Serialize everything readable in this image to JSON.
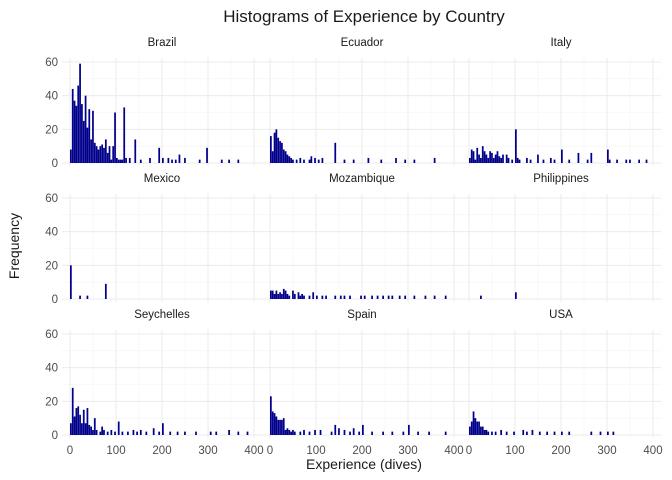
{
  "title": "Histograms of Experience by Country",
  "chart_data": {
    "type": "bar",
    "subtype": "faceted-histogram",
    "title": "Histograms of Experience by Country",
    "xlabel": "Experience (dives)",
    "ylabel": "Frequency",
    "xlim": [
      0,
      400
    ],
    "ylim": [
      0,
      60
    ],
    "x_ticks": [
      0,
      100,
      200,
      300,
      400
    ],
    "y_ticks": [
      0,
      20,
      40,
      60
    ],
    "bin_width": 4,
    "bar_color": "#00008b",
    "grid": true,
    "facet_layout": "3x3",
    "facets": [
      {
        "name": "Brazil",
        "bins": [
          [
            0,
            8
          ],
          [
            4,
            44
          ],
          [
            8,
            37
          ],
          [
            12,
            34
          ],
          [
            16,
            46
          ],
          [
            20,
            59
          ],
          [
            24,
            35
          ],
          [
            28,
            25
          ],
          [
            32,
            40
          ],
          [
            36,
            21
          ],
          [
            40,
            32
          ],
          [
            44,
            14
          ],
          [
            48,
            31
          ],
          [
            52,
            12
          ],
          [
            56,
            10
          ],
          [
            60,
            8
          ],
          [
            64,
            10
          ],
          [
            68,
            11
          ],
          [
            72,
            9
          ],
          [
            76,
            14
          ],
          [
            80,
            6
          ],
          [
            84,
            10
          ],
          [
            88,
            2
          ],
          [
            92,
            10
          ],
          [
            96,
            30
          ],
          [
            100,
            3
          ],
          [
            104,
            2
          ],
          [
            108,
            2
          ],
          [
            112,
            2
          ],
          [
            116,
            33
          ],
          [
            120,
            3
          ],
          [
            128,
            3
          ],
          [
            140,
            14
          ],
          [
            152,
            2
          ],
          [
            172,
            3
          ],
          [
            192,
            9
          ],
          [
            200,
            3
          ],
          [
            212,
            3
          ],
          [
            220,
            2
          ],
          [
            228,
            2
          ],
          [
            236,
            5
          ],
          [
            248,
            3
          ],
          [
            280,
            2
          ],
          [
            296,
            9
          ],
          [
            328,
            2
          ],
          [
            344,
            2
          ],
          [
            364,
            2
          ]
        ]
      },
      {
        "name": "Ecuador",
        "bins": [
          [
            0,
            16
          ],
          [
            4,
            7
          ],
          [
            8,
            18
          ],
          [
            12,
            20
          ],
          [
            16,
            15
          ],
          [
            20,
            13
          ],
          [
            24,
            12
          ],
          [
            28,
            8
          ],
          [
            32,
            7
          ],
          [
            36,
            5
          ],
          [
            40,
            4
          ],
          [
            44,
            3
          ],
          [
            48,
            2
          ],
          [
            56,
            2
          ],
          [
            64,
            3
          ],
          [
            72,
            2
          ],
          [
            84,
            2
          ],
          [
            88,
            4
          ],
          [
            96,
            3
          ],
          [
            104,
            2
          ],
          [
            112,
            3
          ],
          [
            140,
            12
          ],
          [
            160,
            2
          ],
          [
            180,
            2
          ],
          [
            212,
            3
          ],
          [
            240,
            2
          ],
          [
            272,
            3
          ],
          [
            292,
            2
          ],
          [
            312,
            2
          ],
          [
            356,
            3
          ]
        ]
      },
      {
        "name": "Italy",
        "bins": [
          [
            0,
            3
          ],
          [
            4,
            8
          ],
          [
            8,
            7
          ],
          [
            12,
            2
          ],
          [
            16,
            9
          ],
          [
            20,
            5
          ],
          [
            24,
            3
          ],
          [
            28,
            10
          ],
          [
            32,
            7
          ],
          [
            36,
            5
          ],
          [
            40,
            3
          ],
          [
            44,
            7
          ],
          [
            48,
            6
          ],
          [
            52,
            3
          ],
          [
            56,
            5
          ],
          [
            60,
            7
          ],
          [
            64,
            4
          ],
          [
            68,
            3
          ],
          [
            72,
            5
          ],
          [
            80,
            5
          ],
          [
            84,
            3
          ],
          [
            92,
            2
          ],
          [
            100,
            20
          ],
          [
            104,
            3
          ],
          [
            108,
            2
          ],
          [
            124,
            3
          ],
          [
            132,
            2
          ],
          [
            148,
            5
          ],
          [
            160,
            2
          ],
          [
            176,
            3
          ],
          [
            184,
            2
          ],
          [
            200,
            8
          ],
          [
            216,
            2
          ],
          [
            236,
            6
          ],
          [
            256,
            2
          ],
          [
            264,
            6
          ],
          [
            300,
            8
          ],
          [
            304,
            2
          ],
          [
            320,
            2
          ],
          [
            340,
            2
          ],
          [
            348,
            2
          ],
          [
            368,
            2
          ],
          [
            384,
            2
          ]
        ]
      },
      {
        "name": "Mexico",
        "bins": [
          [
            0,
            20
          ],
          [
            20,
            2
          ],
          [
            36,
            2
          ],
          [
            76,
            9
          ]
        ]
      },
      {
        "name": "Mozambique",
        "bins": [
          [
            0,
            5
          ],
          [
            4,
            5
          ],
          [
            8,
            3
          ],
          [
            12,
            5
          ],
          [
            16,
            3
          ],
          [
            20,
            4
          ],
          [
            24,
            3
          ],
          [
            28,
            6
          ],
          [
            32,
            5
          ],
          [
            36,
            3
          ],
          [
            40,
            2
          ],
          [
            48,
            5
          ],
          [
            52,
            3
          ],
          [
            60,
            4
          ],
          [
            64,
            2
          ],
          [
            68,
            3
          ],
          [
            72,
            2
          ],
          [
            84,
            2
          ],
          [
            92,
            4
          ],
          [
            100,
            2
          ],
          [
            112,
            2
          ],
          [
            120,
            2
          ],
          [
            140,
            2
          ],
          [
            152,
            2
          ],
          [
            160,
            2
          ],
          [
            172,
            2
          ],
          [
            196,
            2
          ],
          [
            204,
            2
          ],
          [
            220,
            2
          ],
          [
            232,
            2
          ],
          [
            244,
            2
          ],
          [
            256,
            2
          ],
          [
            264,
            2
          ],
          [
            280,
            2
          ],
          [
            292,
            2
          ],
          [
            312,
            2
          ],
          [
            336,
            2
          ],
          [
            356,
            2
          ],
          [
            380,
            2
          ]
        ]
      },
      {
        "name": "Philippines",
        "bins": [
          [
            24,
            2
          ],
          [
            100,
            4
          ]
        ]
      },
      {
        "name": "Seychelles",
        "bins": [
          [
            0,
            7
          ],
          [
            4,
            28
          ],
          [
            8,
            11
          ],
          [
            12,
            16
          ],
          [
            16,
            17
          ],
          [
            20,
            12
          ],
          [
            24,
            7
          ],
          [
            28,
            15
          ],
          [
            32,
            7
          ],
          [
            36,
            16
          ],
          [
            40,
            6
          ],
          [
            44,
            5
          ],
          [
            48,
            3
          ],
          [
            52,
            10
          ],
          [
            56,
            3
          ],
          [
            64,
            2
          ],
          [
            68,
            5
          ],
          [
            72,
            3
          ],
          [
            80,
            2
          ],
          [
            88,
            3
          ],
          [
            96,
            2
          ],
          [
            104,
            8
          ],
          [
            112,
            2
          ],
          [
            124,
            2
          ],
          [
            136,
            3
          ],
          [
            144,
            2
          ],
          [
            152,
            3
          ],
          [
            164,
            2
          ],
          [
            180,
            4
          ],
          [
            192,
            2
          ],
          [
            200,
            7
          ],
          [
            216,
            2
          ],
          [
            232,
            2
          ],
          [
            248,
            2
          ],
          [
            272,
            2
          ],
          [
            304,
            2
          ],
          [
            316,
            2
          ],
          [
            344,
            3
          ],
          [
            364,
            2
          ],
          [
            384,
            2
          ]
        ]
      },
      {
        "name": "Spain",
        "bins": [
          [
            0,
            23
          ],
          [
            4,
            14
          ],
          [
            8,
            13
          ],
          [
            12,
            11
          ],
          [
            16,
            9
          ],
          [
            20,
            9
          ],
          [
            24,
            9
          ],
          [
            28,
            10
          ],
          [
            32,
            3
          ],
          [
            36,
            4
          ],
          [
            40,
            3
          ],
          [
            44,
            2
          ],
          [
            48,
            3
          ],
          [
            52,
            2
          ],
          [
            64,
            2
          ],
          [
            72,
            3
          ],
          [
            84,
            2
          ],
          [
            96,
            3
          ],
          [
            108,
            3
          ],
          [
            132,
            2
          ],
          [
            140,
            6
          ],
          [
            148,
            4
          ],
          [
            160,
            3
          ],
          [
            172,
            2
          ],
          [
            180,
            4
          ],
          [
            192,
            2
          ],
          [
            200,
            6
          ],
          [
            220,
            2
          ],
          [
            244,
            2
          ],
          [
            264,
            2
          ],
          [
            288,
            2
          ],
          [
            300,
            6
          ],
          [
            320,
            2
          ],
          [
            344,
            2
          ],
          [
            380,
            2
          ]
        ]
      },
      {
        "name": "USA",
        "bins": [
          [
            0,
            5
          ],
          [
            4,
            8
          ],
          [
            8,
            14
          ],
          [
            12,
            10
          ],
          [
            16,
            8
          ],
          [
            20,
            8
          ],
          [
            24,
            5
          ],
          [
            28,
            5
          ],
          [
            32,
            3
          ],
          [
            36,
            3
          ],
          [
            40,
            2
          ],
          [
            48,
            2
          ],
          [
            56,
            2
          ],
          [
            68,
            3
          ],
          [
            80,
            2
          ],
          [
            96,
            2
          ],
          [
            116,
            3
          ],
          [
            124,
            2
          ],
          [
            136,
            3
          ],
          [
            152,
            2
          ],
          [
            168,
            2
          ],
          [
            184,
            2
          ],
          [
            200,
            2
          ],
          [
            216,
            2
          ],
          [
            264,
            2
          ],
          [
            284,
            2
          ],
          [
            300,
            2
          ],
          [
            312,
            2
          ]
        ]
      }
    ]
  }
}
